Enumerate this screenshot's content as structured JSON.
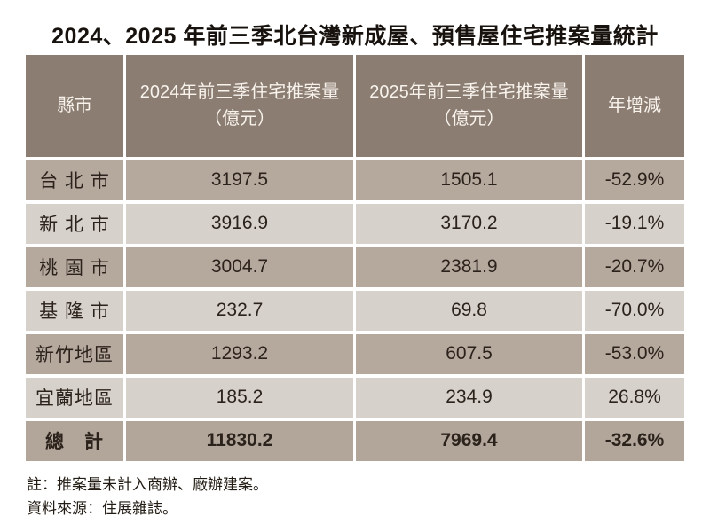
{
  "title": "2024、2025 年前三季北台灣新成屋、預售屋住宅推案量統計",
  "table": {
    "headers": {
      "region": "縣市",
      "y2024": "2024年前三季住宅推案量\n（億元）",
      "y2025": "2025年前三季住宅推案量\n（億元）",
      "change": "年增減"
    },
    "rows": [
      {
        "region": "台 北 市",
        "y2024": "3197.5",
        "y2025": "1505.1",
        "change": "-52.9%"
      },
      {
        "region": "新 北 市",
        "y2024": "3916.9",
        "y2025": "3170.2",
        "change": "-19.1%"
      },
      {
        "region": "桃 園 市",
        "y2024": "3004.7",
        "y2025": "2381.9",
        "change": "-20.7%"
      },
      {
        "region": "基 隆 市",
        "y2024": "232.7",
        "y2025": "69.8",
        "change": "-70.0%"
      },
      {
        "region": "新竹地區",
        "y2024": "1293.2",
        "y2025": "607.5",
        "change": "-53.0%"
      },
      {
        "region": "宜蘭地區",
        "y2024": "185.2",
        "y2025": "234.9",
        "change": "26.8%"
      }
    ],
    "total": {
      "region": "總　計",
      "y2024": "11830.2",
      "y2025": "7969.4",
      "change": "-32.6%"
    }
  },
  "notes": [
    "註：推案量未計入商辦、廠辦建案。",
    "資料來源：住展雜誌。"
  ],
  "colors": {
    "header_bg": "#8b7d71",
    "header_text": "#f8f3ed",
    "row_dark_bg": "#b5a89d",
    "row_light_bg": "#d6d1cb",
    "total_row_bg": "#b2a69b",
    "body_text": "#2b221b",
    "page_bg": "#ffffff"
  },
  "chart_data": {
    "type": "table",
    "title": "2024、2025 年前三季北台灣新成屋、預售屋住宅推案量統計",
    "columns": [
      "縣市",
      "2024年前三季住宅推案量（億元）",
      "2025年前三季住宅推案量（億元）",
      "年增減"
    ],
    "rows": [
      [
        "台北市",
        3197.5,
        1505.1,
        "-52.9%"
      ],
      [
        "新北市",
        3916.9,
        3170.2,
        "-19.1%"
      ],
      [
        "桃園市",
        3004.7,
        2381.9,
        "-20.7%"
      ],
      [
        "基隆市",
        232.7,
        69.8,
        "-70.0%"
      ],
      [
        "新竹地區",
        1293.2,
        607.5,
        "-53.0%"
      ],
      [
        "宜蘭地區",
        185.2,
        234.9,
        "26.8%"
      ]
    ],
    "total_row": [
      "總計",
      11830.2,
      7969.4,
      "-32.6%"
    ],
    "notes": [
      "註：推案量未計入商辦、廠辦建案。",
      "資料來源：住展雜誌。"
    ],
    "units": "億元",
    "layout": {
      "alternating_row_shading": true,
      "header_position": "top"
    }
  }
}
